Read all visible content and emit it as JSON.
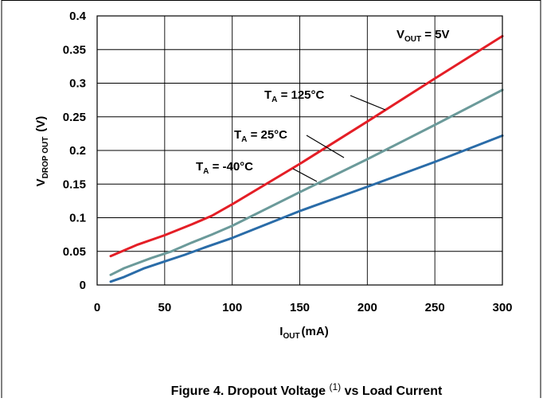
{
  "chart_data": {
    "type": "line",
    "xlim": [
      0,
      300
    ],
    "ylim": [
      0,
      0.4
    ],
    "x_ticks": [
      "0",
      "50",
      "100",
      "150",
      "200",
      "250",
      "300"
    ],
    "y_ticks": [
      "0",
      "0.05",
      "0.1",
      "0.15",
      "0.2",
      "0.25",
      "0.3",
      "0.35",
      "0.4"
    ],
    "grid": true,
    "xlabel": {
      "main": "I",
      "sub": "OUT",
      "rest": "(mA)"
    },
    "ylabel": {
      "main": "V",
      "sub": "DROP OUT",
      "rest": "(V)"
    },
    "vout": {
      "main": "V",
      "sub": "OUT",
      "rest": " = 5V"
    },
    "series": [
      {
        "label_main": "T",
        "label_sub": "A",
        "label_rest": " = 125°C",
        "color": "#e41e26",
        "x": [
          10,
          30,
          50,
          70,
          85,
          100,
          150,
          200,
          250,
          300
        ],
        "y": [
          0.043,
          0.06,
          0.074,
          0.09,
          0.103,
          0.12,
          0.18,
          0.243,
          0.307,
          0.37
        ]
      },
      {
        "label_main": "T",
        "label_sub": "A",
        "label_rest": " = 25°C",
        "color": "#6b9a9a",
        "x": [
          10,
          20,
          40,
          55,
          70,
          85,
          100,
          150,
          200,
          250,
          300
        ],
        "y": [
          0.015,
          0.025,
          0.04,
          0.05,
          0.063,
          0.075,
          0.088,
          0.138,
          0.187,
          0.238,
          0.29
        ]
      },
      {
        "label_main": "T",
        "label_sub": "A",
        "label_rest": " = -40°C",
        "color": "#2a6ca8",
        "x": [
          10,
          20,
          35,
          50,
          65,
          80,
          100,
          150,
          200,
          250,
          300
        ],
        "y": [
          0.005,
          0.012,
          0.025,
          0.035,
          0.045,
          0.056,
          0.07,
          0.11,
          0.146,
          0.183,
          0.222
        ]
      }
    ]
  },
  "caption": {
    "prefix": "Figure 4. Dropout Voltage ",
    "note": "(1)",
    "suffix": " vs Load Current"
  }
}
